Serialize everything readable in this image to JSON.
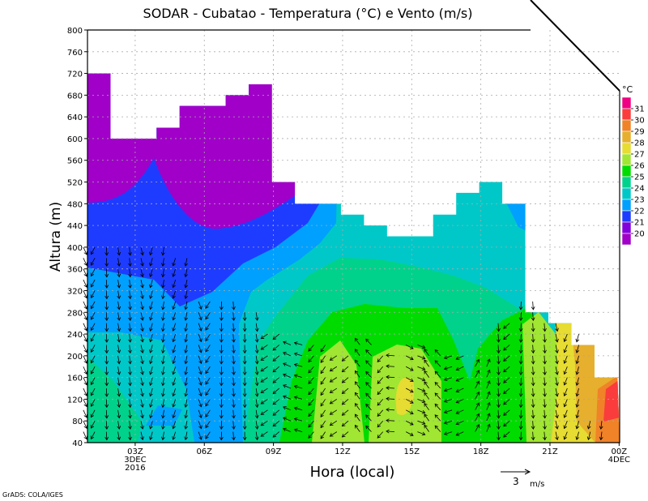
{
  "chart_data": {
    "type": "heatmap",
    "title": "SODAR - Cubatao - Temperatura (°C) e Vento (m/s)",
    "xlabel": "Hora (local)",
    "ylabel": "Altura (m)",
    "ylim": [
      40,
      800
    ],
    "xlim_hours": [
      0.93,
      24
    ],
    "y_ticks": [
      "40",
      "80",
      "120",
      "160",
      "200",
      "240",
      "280",
      "320",
      "360",
      "400",
      "440",
      "480",
      "520",
      "560",
      "600",
      "640",
      "680",
      "720",
      "760",
      "800"
    ],
    "x_ticks": [
      {
        "hour": 3,
        "label": "03Z",
        "sub1": "3DEC",
        "sub2": "2016"
      },
      {
        "hour": 6,
        "label": "06Z"
      },
      {
        "hour": 9,
        "label": "09Z"
      },
      {
        "hour": 12,
        "label": "12Z"
      },
      {
        "hour": 15,
        "label": "15Z"
      },
      {
        "hour": 18,
        "label": "18Z"
      },
      {
        "hour": 21,
        "label": "21Z"
      },
      {
        "hour": 24,
        "label": "00Z",
        "sub1": "4DEC"
      }
    ],
    "grid": true,
    "data_top_heights_by_hour": [
      720,
      600,
      600,
      620,
      660,
      660,
      680,
      700,
      520,
      480,
      480,
      460,
      440,
      420,
      420,
      460,
      500,
      520,
      480,
      280,
      260,
      220,
      160
    ],
    "colorbar": {
      "unit": "°C",
      "labels": [
        "31",
        "30",
        "29",
        "28",
        "27",
        "26",
        "25",
        "24",
        "23",
        "22",
        "21",
        "20"
      ],
      "colors": [
        "#f00082",
        "#fa3c3c",
        "#f08228",
        "#e6af2d",
        "#e6dc32",
        "#a0e632",
        "#00dc00",
        "#00d28c",
        "#00c8c8",
        "#00a0ff",
        "#1e3cff",
        "#8200dc",
        "#a000c8"
      ]
    },
    "wind_reference": {
      "value": "3",
      "unit": "m/s"
    },
    "wind_columns": [
      {
        "hour": 1,
        "zmax": 400,
        "dir": 95
      },
      {
        "hour": 2,
        "zmax": 400,
        "dir": 80
      },
      {
        "hour": 3,
        "zmax": 400,
        "dir": 100
      },
      {
        "hour": 4,
        "zmax": 400,
        "dir": 85
      },
      {
        "hour": 5,
        "zmax": 380,
        "dir": 110
      },
      {
        "hour": 6,
        "zmax": 300,
        "dir": 95
      },
      {
        "hour": 7,
        "zmax": 300,
        "dir": 80
      },
      {
        "hour": 8,
        "zmax": 280,
        "dir": 100
      },
      {
        "hour": 9,
        "zmax": 240,
        "dir": 120
      },
      {
        "hour": 10,
        "zmax": 220,
        "dir": 200
      },
      {
        "hour": 11,
        "zmax": 220,
        "dir": 150
      },
      {
        "hour": 12,
        "zmax": 200,
        "dir": 130
      },
      {
        "hour": 13,
        "zmax": 220,
        "dir": 240
      },
      {
        "hour": 14,
        "zmax": 200,
        "dir": 160
      },
      {
        "hour": 15,
        "zmax": 220,
        "dir": 20
      },
      {
        "hour": 16,
        "zmax": 200,
        "dir": 250
      },
      {
        "hour": 17,
        "zmax": 200,
        "dir": 140
      },
      {
        "hour": 18,
        "zmax": 180,
        "dir": 300
      },
      {
        "hour": 19,
        "zmax": 260,
        "dir": 110
      },
      {
        "hour": 20,
        "zmax": 300,
        "dir": 80
      },
      {
        "hour": 21,
        "zmax": 260,
        "dir": 95
      },
      {
        "hour": 22,
        "zmax": 240,
        "dir": 85
      },
      {
        "hour": 23,
        "zmax": 80,
        "dir": 100
      }
    ]
  },
  "credit": "GrADS: COLA/IGES"
}
